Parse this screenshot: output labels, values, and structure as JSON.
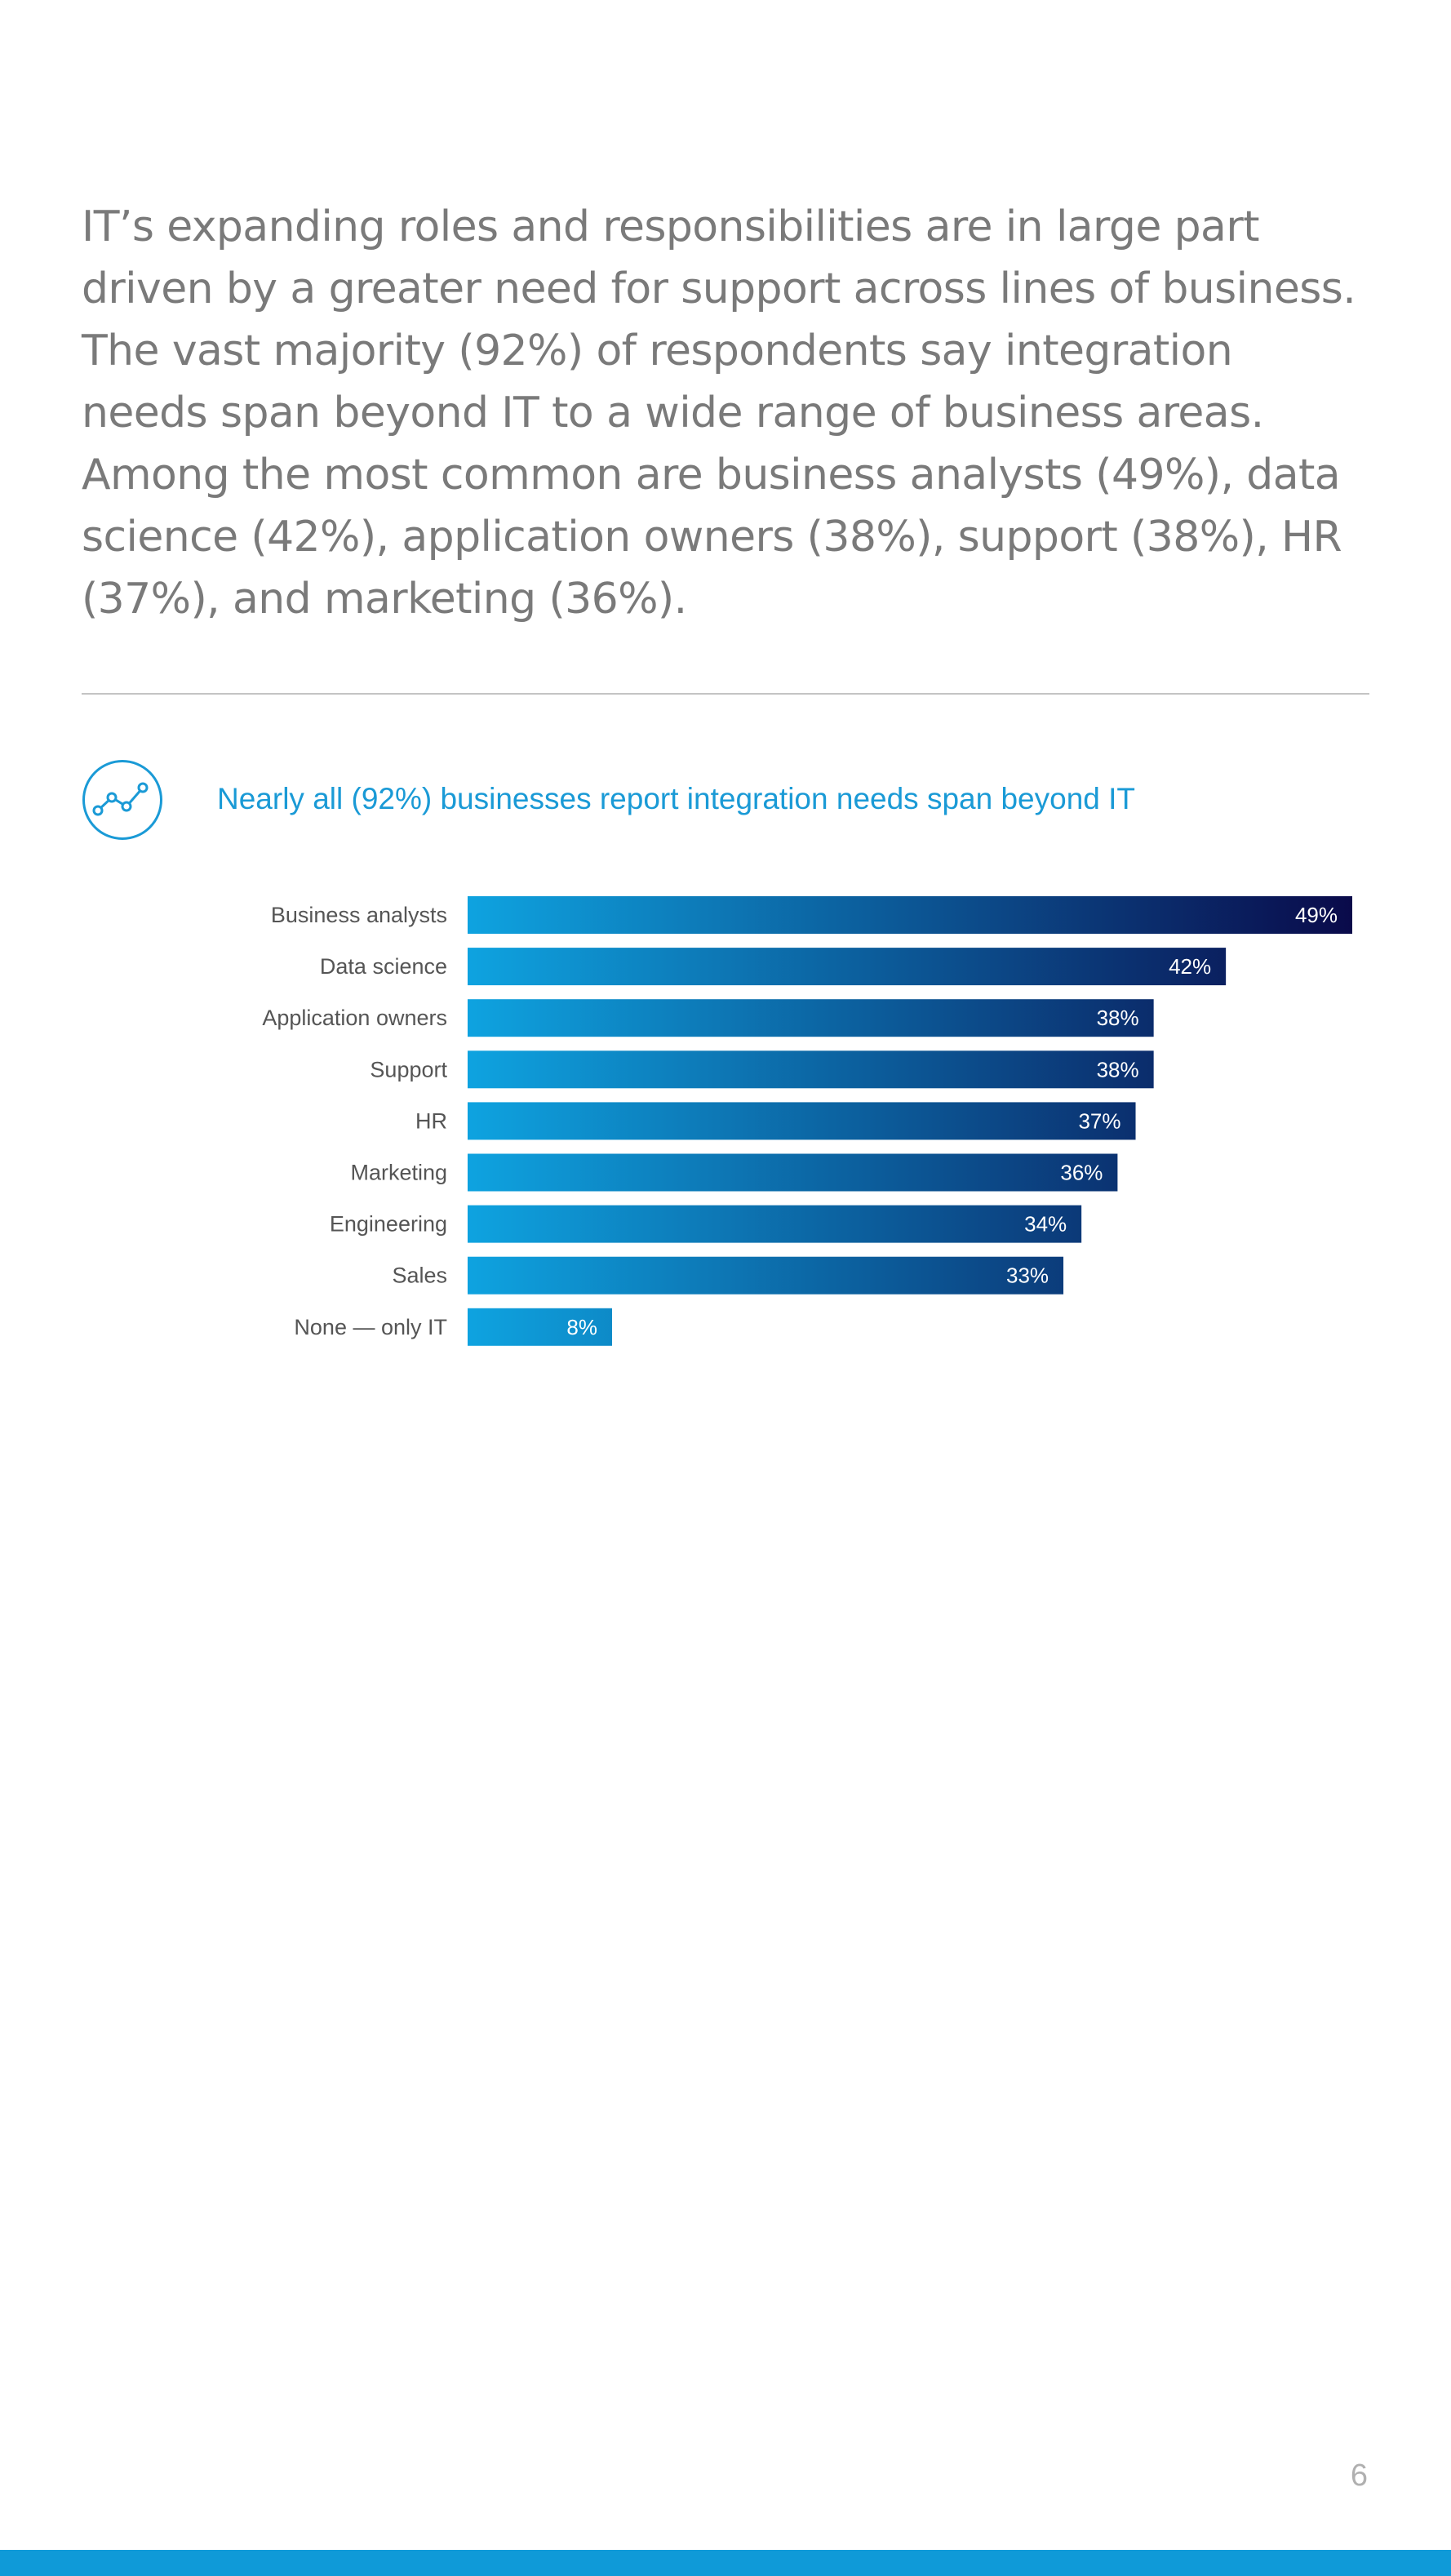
{
  "intro_text": "IT’s expanding roles and responsibilities are in large part driven by a greater need for support across lines of business. The vast majority (92%) of respondents say integration needs span beyond IT to a wide range of business areas. Among the most common are business analysts (49%), data science (42%), application owners (38%), support (38%), HR (37%), and marketing (36%).",
  "chart_icon": "line-chart-icon",
  "colors": {
    "accent": "#1a9ad6",
    "bar_start": "#0ea3e0",
    "bar_end": "#0a0a4a",
    "footer": "#0f9ad8"
  },
  "chart_data": {
    "type": "bar",
    "orientation": "horizontal",
    "title": "Nearly all (92%) businesses report integration needs span beyond IT",
    "categories": [
      "Business analysts",
      "Data science",
      "Application owners",
      "Support",
      "HR",
      "Marketing",
      "Engineering",
      "Sales",
      "None — only IT"
    ],
    "values": [
      49,
      42,
      38,
      38,
      37,
      36,
      34,
      33,
      8
    ],
    "value_labels": [
      "49%",
      "42%",
      "38%",
      "38%",
      "37%",
      "36%",
      "34%",
      "33%",
      "8%"
    ],
    "xlabel": "",
    "ylabel": "",
    "xlim": [
      0,
      49
    ],
    "grid": false,
    "legend": "none"
  },
  "page_number": "6"
}
